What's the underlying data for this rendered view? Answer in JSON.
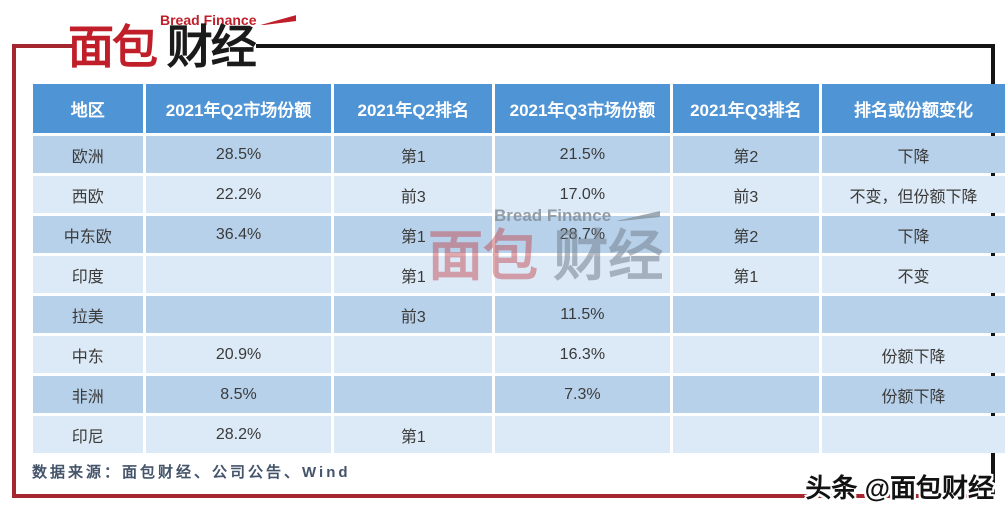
{
  "logo": {
    "brand_en": "Bread Finance",
    "brand_zh_red": "面包",
    "brand_zh_dark": "财经"
  },
  "chart_data": {
    "type": "table",
    "columns": [
      "地区",
      "2021年Q2市场份额",
      "2021年Q2排名",
      "2021年Q3市场份额",
      "2021年Q3排名",
      "排名或份额变化"
    ],
    "rows": [
      [
        "欧洲",
        "28.5%",
        "第1",
        "21.5%",
        "第2",
        "下降"
      ],
      [
        "西欧",
        "22.2%",
        "前3",
        "17.0%",
        "前3",
        "不变，但份额下降"
      ],
      [
        "中东欧",
        "36.4%",
        "第1",
        "28.7%",
        "第2",
        "下降"
      ],
      [
        "印度",
        "",
        "第1",
        "",
        "第1",
        "不变"
      ],
      [
        "拉美",
        "",
        "前3",
        "11.5%",
        "",
        ""
      ],
      [
        "中东",
        "20.9%",
        "",
        "16.3%",
        "",
        "份额下降"
      ],
      [
        "非洲",
        "8.5%",
        "",
        "7.3%",
        "",
        "份额下降"
      ],
      [
        "印尼",
        "28.2%",
        "第1",
        "",
        "",
        ""
      ]
    ],
    "layout": {
      "striped": true,
      "header_bg": "#4f94d5",
      "row_odd_bg": "#b7d1ea",
      "row_even_bg": "#dce9f6",
      "grid_gap_color": "#ffffff"
    }
  },
  "footer": {
    "source_text": "数据来源：面包财经、公司公告、Wind"
  },
  "watermark": {
    "center_en": "Bread Finance",
    "center_zh_red": "面包",
    "center_zh_gray": "财经",
    "toutiao_text": "头条 @面包财经"
  },
  "colors": {
    "frame_red": "#a5262f",
    "frame_black": "#141414",
    "logo_red": "#c01f2a",
    "header_text": "#ffffff",
    "cell_text": "#3a3a3a",
    "source_text": "#44546a"
  }
}
